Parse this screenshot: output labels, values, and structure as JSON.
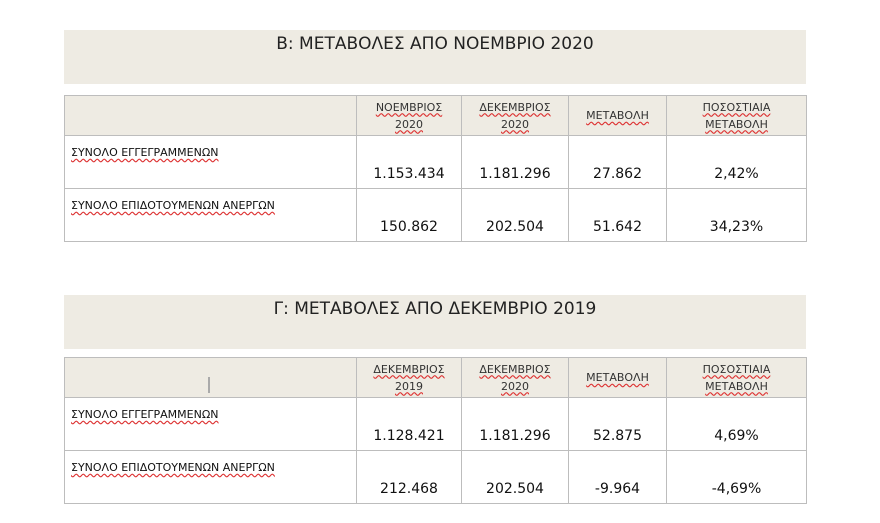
{
  "sections": [
    {
      "title": "Β: ΜΕΤΑΒΟΛΕΣ ΑΠΟ ΝΟΕΜΒΡΙΟ 2020",
      "table": {
        "columns": [
          "ΝΟΕΜΒΡΙΟΣ 2020",
          "ΔΕΚΕΜΒΡΙΟΣ 2020",
          "ΜΕΤΑΒΟΛΗ",
          "ΠΟΣΟΣΤΙΑΙΑ ΜΕΤΑΒΟΛΗ"
        ],
        "rows": [
          {
            "label": "ΣΥΝΟΛΟ ΕΓΓΕΓΡΑΜΜΕΝΩΝ",
            "values": [
              "1.153.434",
              "1.181.296",
              "27.862",
              "2,42%"
            ]
          },
          {
            "label": "ΣΥΝΟΛΟ ΕΠΙΔΟΤΟΥΜΕΝΩΝ ΑΝΕΡΓΩΝ",
            "values": [
              "150.862",
              "202.504",
              "51.642",
              "34,23%"
            ]
          }
        ]
      }
    },
    {
      "title": "Γ: ΜΕΤΑΒΟΛΕΣ ΑΠΟ ΔΕΚΕΜΒΡΙΟ 2019",
      "table": {
        "columns": [
          "ΔΕΚΕΜΒΡΙΟΣ 2019",
          "ΔΕΚΕΜΒΡΙΟΣ 2020",
          "ΜΕΤΑΒΟΛΗ",
          "ΠΟΣΟΣΤΙΑΙΑ ΜΕΤΑΒΟΛΗ"
        ],
        "rows": [
          {
            "label": "ΣΥΝΟΛΟ ΕΓΓΕΓΡΑΜΜΕΝΩΝ",
            "values": [
              "1.128.421",
              "1.181.296",
              "52.875",
              "4,69%"
            ]
          },
          {
            "label": "ΣΥΝΟΛΟ ΕΠΙΔΟΤΟΥΜΕΝΩΝ ΑΝΕΡΓΩΝ",
            "values": [
              "212.468",
              "202.504",
              "-9.964",
              "-4,69%"
            ]
          }
        ]
      }
    }
  ]
}
